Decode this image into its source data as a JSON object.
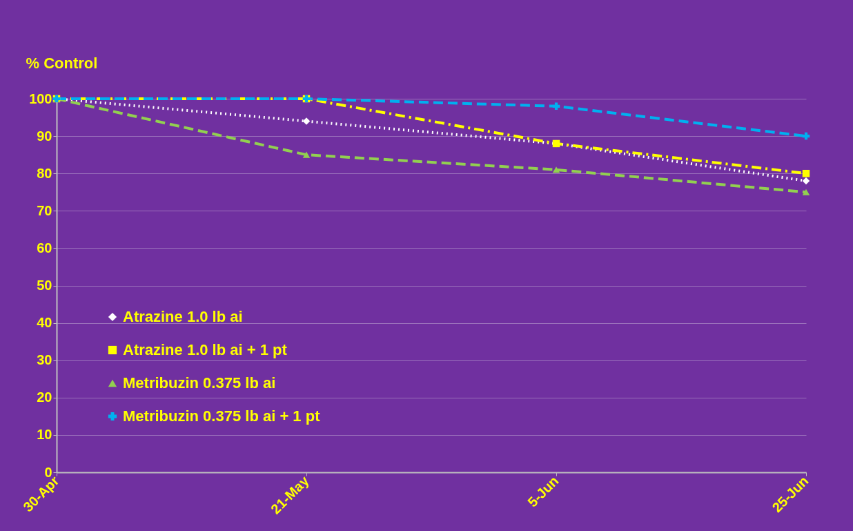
{
  "chart_data": {
    "type": "line",
    "ylabel": "% Control",
    "categories": [
      "30-Apr",
      "21-May",
      "5-Jun",
      "25-Jun"
    ],
    "ylim": [
      0,
      100
    ],
    "yticks": [
      0,
      10,
      20,
      30,
      40,
      50,
      60,
      70,
      80,
      90,
      100
    ],
    "grid": "y",
    "legend": "bottom left",
    "series": [
      {
        "name": "Atrazine 1.0 lb ai",
        "color": "#ffffff",
        "marker": "diamond",
        "line_style": "dotted",
        "values": [
          100,
          94,
          88,
          78
        ]
      },
      {
        "name": "Atrazine 1.0 lb ai + 1 pt",
        "color": "#ffff00",
        "marker": "square",
        "line_style": "dashed",
        "values": [
          100,
          100,
          88,
          80
        ]
      },
      {
        "name": "Metribuzin 0.375 lb ai",
        "color": "#92d050",
        "marker": "triangle",
        "line_style": "dashed",
        "values": [
          100,
          85,
          81,
          75
        ]
      },
      {
        "name": "Metribuzin 0.375 lb ai + 1 pt",
        "color": "#00b0f0",
        "marker": "cross",
        "line_style": "dashed",
        "values": [
          100,
          100,
          98,
          90
        ]
      }
    ]
  }
}
